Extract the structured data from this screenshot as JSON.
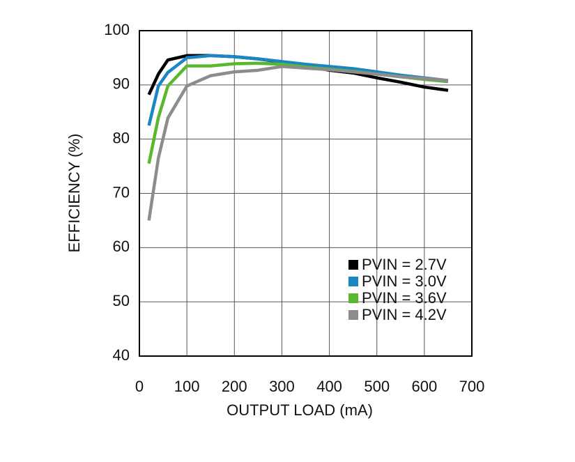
{
  "chart_data": {
    "type": "line",
    "x_label": "OUTPUT LOAD (mA)",
    "y_label": "EFFICIENCY (%)",
    "x": [
      20,
      40,
      60,
      100,
      150,
      200,
      250,
      300,
      350,
      400,
      450,
      500,
      550,
      600,
      650
    ],
    "series": [
      {
        "name": "PVIN = 2.7V",
        "color": "#000000",
        "values": [
          88.2,
          92.0,
          94.6,
          95.4,
          95.4,
          95.2,
          94.8,
          94.2,
          93.5,
          92.7,
          92.2,
          91.3,
          90.5,
          89.6,
          89.0
        ]
      },
      {
        "name": "PVIN = 3.0V",
        "color": "#1a86c4",
        "values": [
          82.5,
          89.8,
          92.3,
          95.0,
          95.4,
          95.2,
          94.8,
          94.3,
          93.8,
          93.4,
          93.0,
          92.4,
          91.8,
          91.3,
          90.8
        ]
      },
      {
        "name": "PVIN = 3.6V",
        "color": "#5ab82f",
        "values": [
          75.5,
          84.0,
          89.8,
          93.5,
          93.5,
          93.9,
          94.0,
          93.8,
          93.3,
          92.9,
          92.5,
          92.0,
          91.5,
          91.0,
          90.6
        ]
      },
      {
        "name": "PVIN = 4.2V",
        "color": "#8c8c8c",
        "values": [
          65.0,
          76.5,
          83.9,
          89.8,
          91.7,
          92.4,
          92.7,
          93.4,
          93.1,
          92.8,
          92.4,
          92.0,
          91.5,
          91.2,
          90.8
        ]
      }
    ],
    "xlim": [
      0,
      700
    ],
    "xticks": [
      0,
      100,
      200,
      300,
      400,
      500,
      600,
      700
    ],
    "ylim": [
      40,
      100
    ],
    "yticks": [
      40,
      50,
      60,
      70,
      80,
      90,
      100
    ],
    "grid": true,
    "legend": "lower right"
  }
}
